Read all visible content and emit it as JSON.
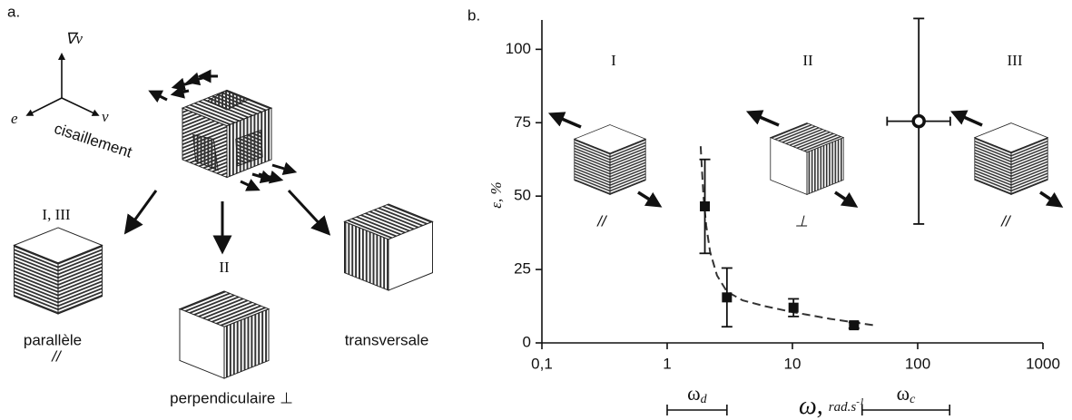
{
  "panel_a": {
    "panel_label": "a.",
    "axes": {
      "gradient": "∇v",
      "e": "e",
      "v": "v",
      "shear": "cisaillement"
    },
    "states": [
      {
        "regime": "I, III",
        "name": "parallèle",
        "symbol": "//"
      },
      {
        "regime": "II",
        "name": "perpendiculaire ⊥"
      },
      {
        "name": "transversale"
      }
    ]
  },
  "chart_data": {
    "type": "scatter",
    "panel_label": "b.",
    "xscale": "log",
    "xlim": [
      0.1,
      1000
    ],
    "xticks": [
      {
        "value": 0.1,
        "label": "0,1"
      },
      1,
      10,
      100,
      1000
    ],
    "ylim": [
      0,
      110
    ],
    "yticks": [
      0,
      25,
      50,
      75,
      100
    ],
    "ylabel": "ε, %",
    "xlabel": {
      "symbol": "ω,",
      "unit": "rad.s",
      "exponent": "-1"
    },
    "series": [
      {
        "marker": "square",
        "color": "#111111",
        "x": [
          2.0,
          3.0,
          10.2,
          31
        ],
        "values": [
          46.5,
          15.5,
          12,
          6
        ],
        "yerr": [
          16,
          10,
          3,
          1
        ]
      },
      {
        "marker": "open-circle",
        "color": "#111111",
        "x": [
          102
        ],
        "values": [
          75.5
        ],
        "yerr": [
          35
        ],
        "xerr_bounds": [
          [
            57,
            182
          ]
        ]
      }
    ],
    "fit": {
      "color": "#333333",
      "x": [
        1.85,
        1.9,
        1.95,
        2.05,
        2.2,
        2.5,
        3,
        4,
        6,
        10,
        20,
        45
      ],
      "values": [
        67,
        58,
        50,
        40,
        31,
        23,
        17.5,
        14.5,
        12.5,
        10.5,
        8.2,
        6
      ]
    },
    "regions": [
      "I",
      "II",
      "III"
    ],
    "inset_labels": [
      "//",
      "⊥",
      "//"
    ],
    "ranges": [
      {
        "symbol": "ω",
        "sub": "d",
        "range": [
          1,
          3
        ]
      },
      {
        "symbol": "ω",
        "sub": "c",
        "range": [
          36,
          180
        ]
      }
    ]
  }
}
